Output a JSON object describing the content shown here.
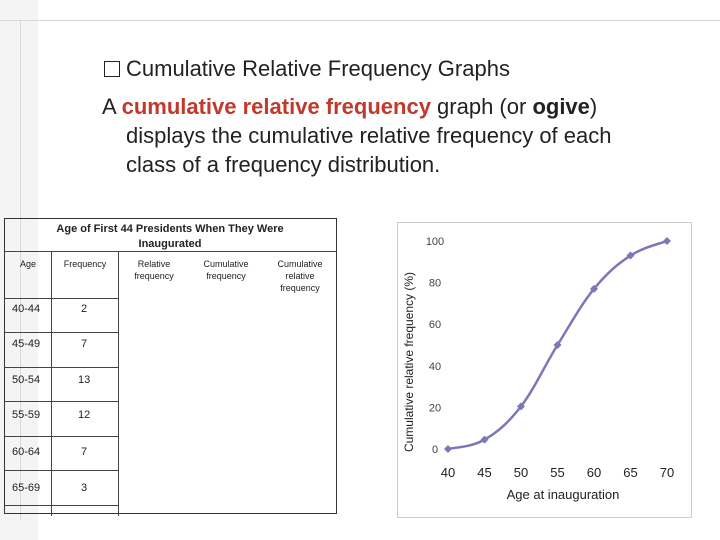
{
  "slide": {
    "heading_prefix": "�",
    "heading": "Cumulative Relative Frequency Graphs",
    "para_a": "A ",
    "para_term1": "cumulative relative frequency",
    "para_b": " graph (or ",
    "para_term2": "ogive",
    "para_c": ")",
    "para_line2": "displays the cumulative relative frequency of each",
    "para_line3": "class of a frequency distribution."
  },
  "table": {
    "title": "Age of First 44 Presidents When They Were Inaugurated",
    "headers": [
      "Age",
      "Frequency",
      "Relative frequency",
      "Cumulative frequency",
      "Cumulative relative frequency"
    ],
    "rows": [
      {
        "age": "40-44",
        "freq": "2"
      },
      {
        "age": "45-49",
        "freq": "7"
      },
      {
        "age": "50-54",
        "freq": "13"
      },
      {
        "age": "55-59",
        "freq": "12"
      },
      {
        "age": "60-64",
        "freq": "7"
      },
      {
        "age": "65-69",
        "freq": "3"
      }
    ]
  },
  "chart_data": {
    "type": "line",
    "x": [
      40,
      45,
      50,
      55,
      60,
      65,
      70
    ],
    "values": [
      0,
      4.5,
      20.5,
      50,
      77,
      93,
      100
    ],
    "xlabel": "Age at inauguration",
    "ylabel": "Cumulative relative frequency (%)",
    "xticks": [
      "40",
      "45",
      "50",
      "55",
      "60",
      "65",
      "70"
    ],
    "yticks": [
      "0",
      "20",
      "40",
      "60",
      "80",
      "100"
    ],
    "xlim": [
      40,
      70
    ],
    "ylim": [
      0,
      100
    ],
    "grid": false,
    "series_color": "#7b78b8"
  }
}
